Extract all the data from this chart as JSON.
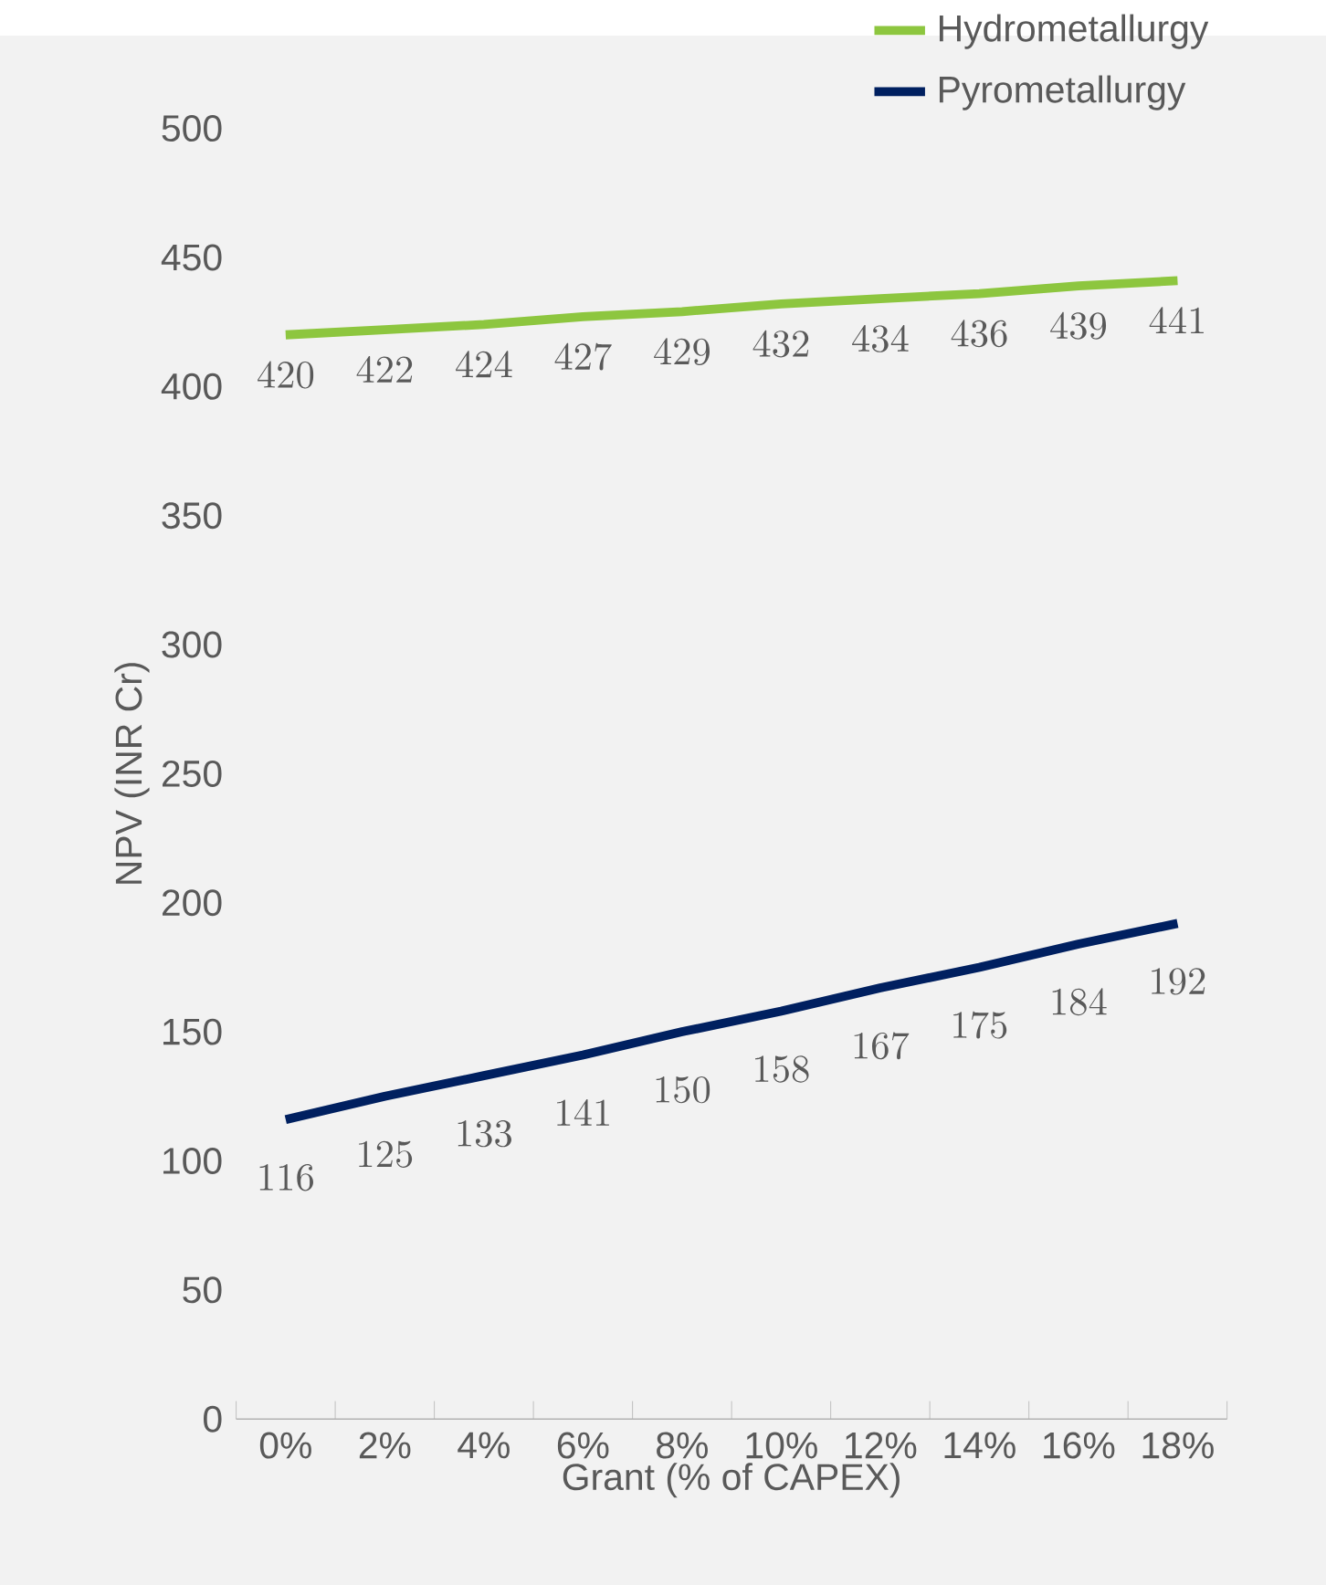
{
  "chart_data": {
    "type": "line",
    "xlabel": "Grant (% of CAPEX)",
    "ylabel": "NPV (INR Cr)",
    "categories": [
      "0%",
      "2%",
      "4%",
      "6%",
      "8%",
      "10%",
      "12%",
      "14%",
      "16%",
      "18%"
    ],
    "series": [
      {
        "name": "Hydrometallurgy",
        "color": "#8dc63f",
        "values": [
          420,
          422,
          424,
          427,
          429,
          432,
          434,
          436,
          439,
          441
        ]
      },
      {
        "name": "Pyrometallurgy",
        "color": "#002060",
        "values": [
          116,
          125,
          133,
          141,
          150,
          158,
          167,
          175,
          184,
          192
        ]
      }
    ],
    "ylim": [
      0,
      500
    ],
    "yticks": [
      0,
      50,
      100,
      150,
      200,
      250,
      300,
      350,
      400,
      450,
      500
    ],
    "data_labels": true,
    "legend": "top right",
    "grid": false,
    "marker": "none",
    "line_style": "solid"
  }
}
